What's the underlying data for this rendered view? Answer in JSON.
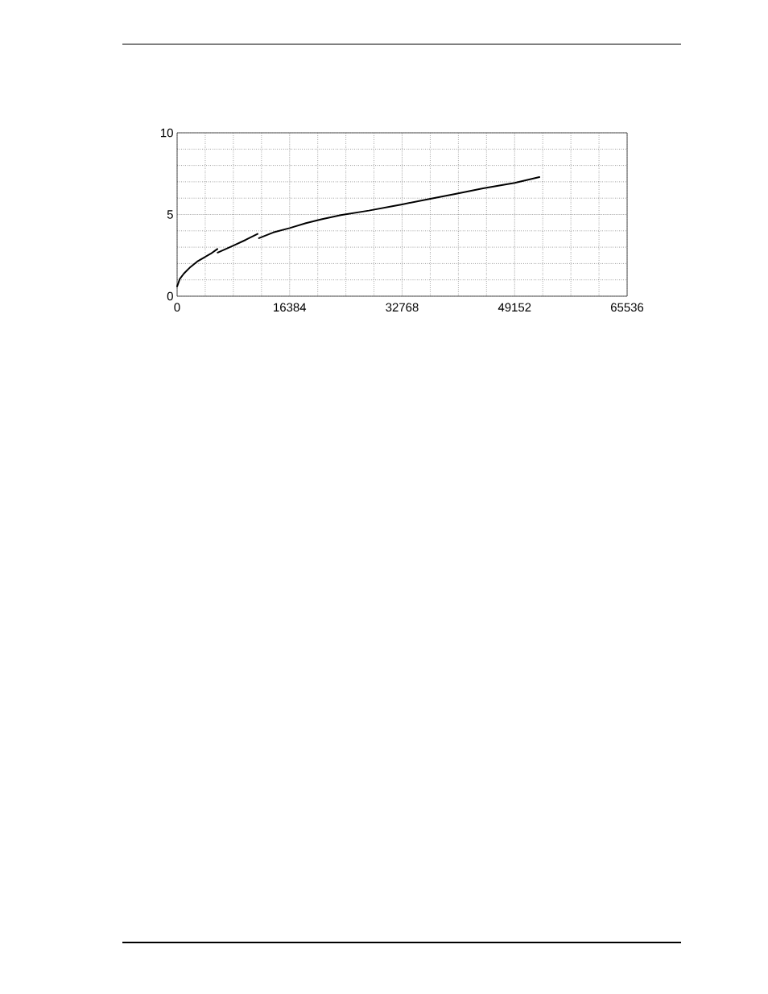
{
  "chart_data": {
    "type": "line",
    "x": [
      0,
      390,
      975,
      1950,
      2930,
      3900,
      4900,
      5860,
      5880,
      5900,
      8200,
      10000,
      11720,
      11820,
      11920,
      14000,
      16384,
      18760,
      21000,
      23840,
      27940,
      32768,
      36730,
      40650,
      44560,
      49152,
      52760
    ],
    "series": [
      {
        "color": "#000000",
        "values": [
          0.6,
          1.05,
          1.38,
          1.79,
          2.12,
          2.36,
          2.6,
          2.89,
          null,
          2.67,
          3.1,
          3.45,
          3.81,
          null,
          3.55,
          3.9,
          4.17,
          4.47,
          4.7,
          4.96,
          5.24,
          5.62,
          5.95,
          6.27,
          6.6,
          6.93,
          7.29
        ]
      }
    ],
    "xlim": [
      0,
      65536
    ],
    "ylim": [
      0,
      10
    ],
    "xticks": [
      0,
      {
        "value": 4096,
        "label": null
      },
      {
        "value": 8192,
        "label": null
      },
      {
        "value": 12288,
        "label": null
      },
      16384,
      {
        "value": 20480,
        "label": null
      },
      {
        "value": 24576,
        "label": null
      },
      {
        "value": 28672,
        "label": null
      },
      32768,
      {
        "value": 36864,
        "label": null
      },
      {
        "value": 40960,
        "label": null
      },
      {
        "value": 45056,
        "label": null
      },
      49152,
      {
        "value": 53248,
        "label": null
      },
      {
        "value": 57344,
        "label": null
      },
      {
        "value": 61440,
        "label": null
      },
      65536
    ],
    "yticks": [
      0,
      {
        "value": 1,
        "label": null
      },
      {
        "value": 2,
        "label": null
      },
      {
        "value": 3,
        "label": null
      },
      {
        "value": 4,
        "label": null
      },
      5,
      {
        "value": 6,
        "label": null
      },
      {
        "value": 7,
        "label": null
      },
      {
        "value": 8,
        "label": null
      },
      {
        "value": 9,
        "label": null
      },
      10
    ],
    "grid": true,
    "line_style": "solid"
  }
}
